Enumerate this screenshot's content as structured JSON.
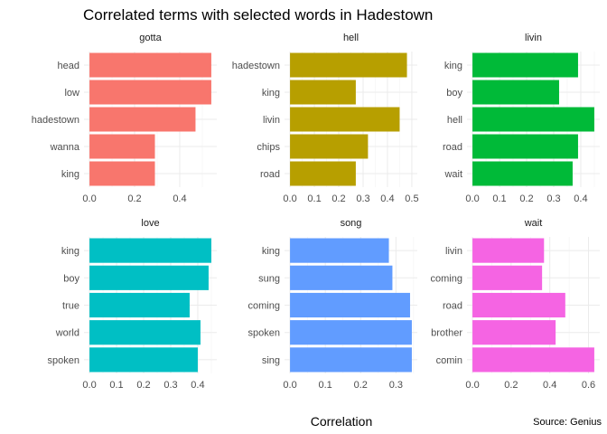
{
  "chart_data": {
    "type": "bar",
    "orientation": "horizontal",
    "title": "Correlated terms with selected words in Hadestown",
    "xlabel": "Correlation",
    "caption": "Source: Genius",
    "grid": true,
    "legend": "none",
    "facets": [
      {
        "name": "gotta",
        "color": "#F8766D",
        "categories": [
          "head",
          "low",
          "hadestown",
          "wanna",
          "king"
        ],
        "values": [
          0.54,
          0.54,
          0.47,
          0.29,
          0.29
        ],
        "xlim": [
          0,
          0.54
        ],
        "xticks": [
          0.0,
          0.2,
          0.4
        ],
        "xtick_labels": [
          "0.0",
          "0.2",
          "0.4"
        ]
      },
      {
        "name": "hell",
        "color": "#B79F00",
        "categories": [
          "hadestown",
          "king",
          "livin",
          "chips",
          "road"
        ],
        "values": [
          0.48,
          0.27,
          0.45,
          0.32,
          0.27
        ],
        "xlim": [
          0,
          0.5
        ],
        "xticks": [
          0.0,
          0.1,
          0.2,
          0.3,
          0.4,
          0.5
        ],
        "xtick_labels": [
          "0.0",
          "0.1",
          "0.2",
          "0.3",
          "0.4",
          "0.5"
        ]
      },
      {
        "name": "livin",
        "color": "#00BA38",
        "categories": [
          "king",
          "boy",
          "hell",
          "road",
          "wait"
        ],
        "values": [
          0.39,
          0.32,
          0.45,
          0.39,
          0.37
        ],
        "xlim": [
          0,
          0.45
        ],
        "xticks": [
          0.0,
          0.1,
          0.2,
          0.3,
          0.4
        ],
        "xtick_labels": [
          "0.0",
          "0.1",
          "0.2",
          "0.3",
          "0.4"
        ]
      },
      {
        "name": "love",
        "color": "#00BFC4",
        "categories": [
          "king",
          "boy",
          "true",
          "world",
          "spoken"
        ],
        "values": [
          0.45,
          0.44,
          0.37,
          0.41,
          0.4
        ],
        "xlim": [
          0,
          0.45
        ],
        "xticks": [
          0.0,
          0.1,
          0.2,
          0.3,
          0.4
        ],
        "xtick_labels": [
          "0.0",
          "0.1",
          "0.2",
          "0.3",
          "0.4"
        ]
      },
      {
        "name": "song",
        "color": "#619CFF",
        "categories": [
          "king",
          "sung",
          "coming",
          "spoken",
          "sing"
        ],
        "values": [
          0.28,
          0.29,
          0.34,
          0.345,
          0.345
        ],
        "xlim": [
          0,
          0.345
        ],
        "xticks": [
          0.0,
          0.1,
          0.2,
          0.3
        ],
        "xtick_labels": [
          "0.0",
          "0.1",
          "0.2",
          "0.3"
        ]
      },
      {
        "name": "wait",
        "color": "#F564E3",
        "categories": [
          "livin",
          "coming",
          "road",
          "brother",
          "comin"
        ],
        "values": [
          0.37,
          0.36,
          0.48,
          0.43,
          0.63
        ],
        "xlim": [
          0,
          0.63
        ],
        "xticks": [
          0.0,
          0.2,
          0.4,
          0.6
        ],
        "xtick_labels": [
          "0.0",
          "0.2",
          "0.4",
          "0.6"
        ]
      }
    ]
  }
}
